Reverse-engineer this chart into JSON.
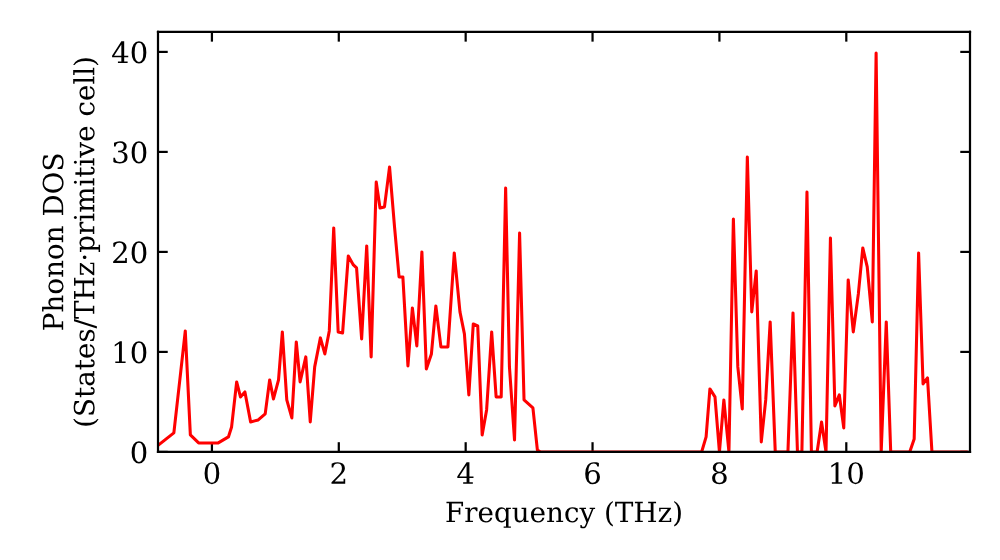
{
  "chart_data": {
    "type": "line",
    "xlabel": "Frequency (THz)",
    "ylabel": "Phonon DOS\n(States/THz·primitive cell)",
    "xlim": [
      -0.85,
      11.95
    ],
    "ylim": [
      0,
      42
    ],
    "xticks": [
      0,
      2,
      4,
      6,
      8,
      10
    ],
    "yticks": [
      0,
      10,
      20,
      30,
      40
    ],
    "marker": "none",
    "line_style": "solid",
    "series": [
      {
        "color": "#ff0000",
        "x": [
          -0.84,
          -0.6,
          -0.49,
          -0.42,
          -0.34,
          -0.21,
          0.1,
          0.26,
          0.31,
          0.39,
          0.45,
          0.52,
          0.61,
          0.73,
          0.84,
          0.91,
          0.97,
          1.05,
          1.11,
          1.18,
          1.26,
          1.33,
          1.39,
          1.48,
          1.55,
          1.62,
          1.71,
          1.78,
          1.85,
          1.92,
          1.99,
          2.06,
          2.15,
          2.23,
          2.28,
          2.36,
          2.44,
          2.51,
          2.59,
          2.65,
          2.72,
          2.8,
          2.88,
          2.95,
          3.01,
          3.09,
          3.16,
          3.23,
          3.31,
          3.38,
          3.46,
          3.53,
          3.61,
          3.72,
          3.82,
          3.91,
          3.98,
          4.05,
          4.12,
          4.19,
          4.26,
          4.33,
          4.41,
          4.48,
          4.56,
          4.63,
          4.69,
          4.77,
          4.85,
          4.92,
          5.06,
          5.13,
          5.18,
          7.72,
          7.79,
          7.85,
          7.93,
          8.0,
          8.07,
          8.15,
          8.22,
          8.29,
          8.36,
          8.44,
          8.51,
          8.58,
          8.66,
          8.73,
          8.8,
          8.88,
          9.08,
          9.16,
          9.23,
          9.3,
          9.38,
          9.45,
          9.54,
          9.61,
          9.68,
          9.75,
          9.82,
          9.89,
          9.96,
          10.03,
          10.11,
          10.19,
          10.26,
          10.33,
          10.41,
          10.47,
          10.55,
          10.63,
          10.7,
          11.0,
          11.07,
          11.14,
          11.21,
          11.28,
          11.35,
          11.89
        ],
        "values": [
          0.7,
          1.9,
          8.1,
          12.1,
          1.7,
          0.9,
          0.9,
          1.5,
          2.5,
          7,
          5.5,
          6,
          3,
          3.2,
          3.8,
          7.2,
          5.3,
          7.2,
          12,
          5.2,
          3.4,
          11,
          7,
          9.5,
          3,
          8.5,
          11.4,
          9.8,
          12.1,
          22.4,
          12,
          11.9,
          19.6,
          18.7,
          18.4,
          11.3,
          20.6,
          9.5,
          27,
          24.4,
          24.5,
          28.5,
          22.4,
          17.5,
          17.5,
          8.6,
          14.4,
          10.6,
          20,
          8.3,
          9.8,
          14.6,
          10.5,
          10.5,
          19.9,
          14,
          11.8,
          5.7,
          12.8,
          12.6,
          1.7,
          4.2,
          12,
          5.5,
          5.5,
          26.4,
          8.5,
          1.2,
          21.9,
          5.2,
          4.4,
          0.2,
          0,
          0,
          1.5,
          6.3,
          5.5,
          0,
          5.2,
          0,
          23.3,
          8.5,
          4.3,
          29.5,
          14,
          18.1,
          1,
          5.2,
          13,
          0,
          0,
          13.9,
          0,
          0,
          26,
          0,
          0,
          3,
          0,
          21.4,
          4.6,
          5.7,
          2.4,
          17.2,
          12,
          15.8,
          20.4,
          18.5,
          13,
          39.9,
          0,
          13,
          0,
          0,
          1.3,
          19.9,
          6.8,
          7.4,
          0,
          0
        ]
      }
    ]
  }
}
